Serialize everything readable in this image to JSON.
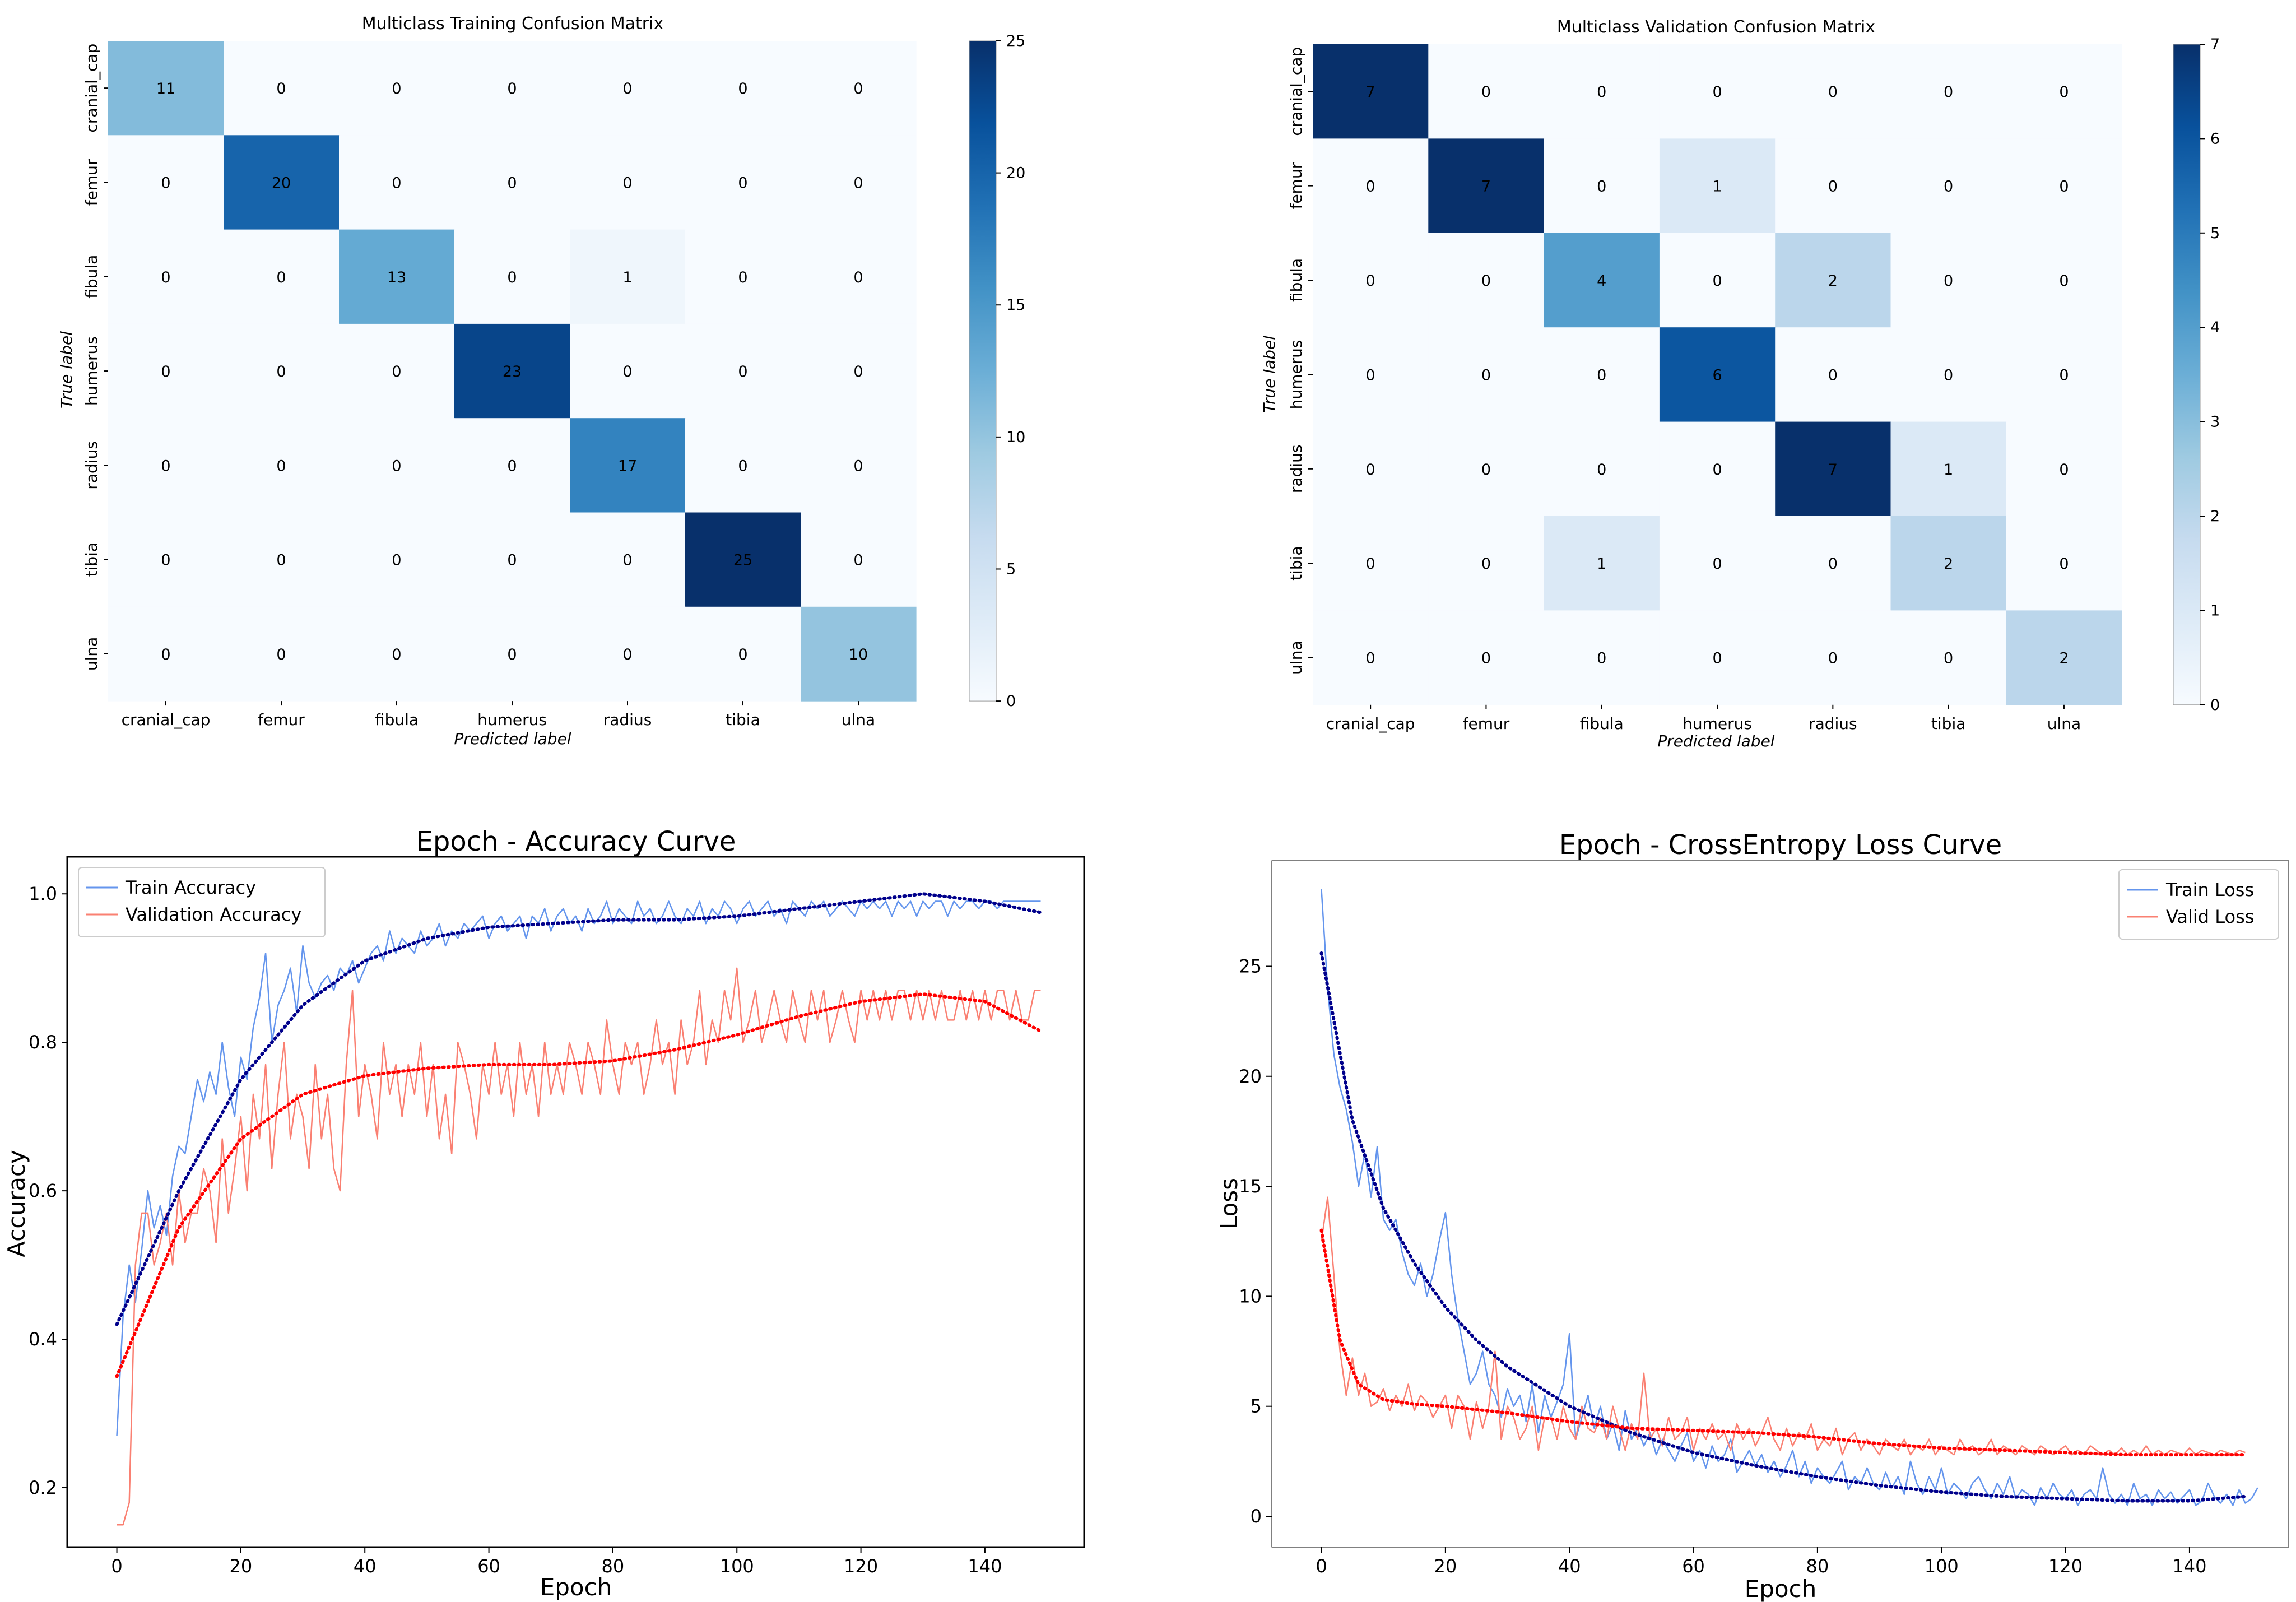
{
  "chart_data": [
    {
      "type": "heatmap",
      "title": "Multiclass Training Confusion Matrix",
      "xlabel": "Predicted label",
      "ylabel": "True label",
      "x_categories": [
        "cranial_cap",
        "femur",
        "fibula",
        "humerus",
        "radius",
        "tibia",
        "ulna"
      ],
      "y_categories": [
        "cranial_cap",
        "femur",
        "fibula",
        "humerus",
        "radius",
        "tibia",
        "ulna"
      ],
      "matrix": [
        [
          11,
          0,
          0,
          0,
          0,
          0,
          0
        ],
        [
          0,
          20,
          0,
          0,
          0,
          0,
          0
        ],
        [
          0,
          0,
          13,
          0,
          1,
          0,
          0
        ],
        [
          0,
          0,
          0,
          23,
          0,
          0,
          0
        ],
        [
          0,
          0,
          0,
          0,
          17,
          0,
          0
        ],
        [
          0,
          0,
          0,
          0,
          0,
          25,
          0
        ],
        [
          0,
          0,
          0,
          0,
          0,
          0,
          10
        ]
      ],
      "colorbar_range": [
        0,
        25
      ],
      "colorbar_ticks": [
        "0",
        "5",
        "10",
        "15",
        "20",
        "25"
      ],
      "colormap": "Blues"
    },
    {
      "type": "heatmap",
      "title": "Multiclass Validation Confusion Matrix",
      "xlabel": "Predicted label",
      "ylabel": "True label",
      "x_categories": [
        "cranial_cap",
        "femur",
        "fibula",
        "humerus",
        "radius",
        "tibia",
        "ulna"
      ],
      "y_categories": [
        "cranial_cap",
        "femur",
        "fibula",
        "humerus",
        "radius",
        "tibia",
        "ulna"
      ],
      "matrix": [
        [
          7,
          0,
          0,
          0,
          0,
          0,
          0
        ],
        [
          0,
          7,
          0,
          1,
          0,
          0,
          0
        ],
        [
          0,
          0,
          4,
          0,
          2,
          0,
          0
        ],
        [
          0,
          0,
          0,
          6,
          0,
          0,
          0
        ],
        [
          0,
          0,
          0,
          0,
          7,
          1,
          0
        ],
        [
          0,
          0,
          1,
          0,
          0,
          2,
          0
        ],
        [
          0,
          0,
          0,
          0,
          0,
          0,
          2
        ]
      ],
      "colorbar_range": [
        0,
        7
      ],
      "colorbar_ticks": [
        "0",
        "1",
        "2",
        "3",
        "4",
        "5",
        "6",
        "7"
      ],
      "colormap": "Blues"
    },
    {
      "type": "line",
      "title": "Epoch - Accuracy Curve",
      "xlabel": "Epoch",
      "ylabel": "Accuracy",
      "xlim": [
        -8,
        156
      ],
      "ylim": [
        0.12,
        1.05
      ],
      "xticks": [
        "0",
        "20",
        "40",
        "60",
        "80",
        "100",
        "120",
        "140"
      ],
      "yticks": [
        "0.2",
        "0.4",
        "0.6",
        "0.8",
        "1.0"
      ],
      "legend_position": "upper-left",
      "series": [
        {
          "name": "Train Accuracy",
          "color": "#6495ED",
          "values": [
            0.27,
            0.43,
            0.5,
            0.45,
            0.52,
            0.6,
            0.55,
            0.58,
            0.54,
            0.62,
            0.66,
            0.65,
            0.7,
            0.75,
            0.72,
            0.76,
            0.73,
            0.8,
            0.74,
            0.7,
            0.78,
            0.75,
            0.82,
            0.86,
            0.92,
            0.8,
            0.85,
            0.87,
            0.9,
            0.84,
            0.93,
            0.88,
            0.86,
            0.88,
            0.89,
            0.87,
            0.9,
            0.89,
            0.91,
            0.88,
            0.9,
            0.92,
            0.93,
            0.91,
            0.95,
            0.92,
            0.94,
            0.93,
            0.92,
            0.95,
            0.93,
            0.94,
            0.96,
            0.93,
            0.95,
            0.94,
            0.96,
            0.95,
            0.96,
            0.97,
            0.94,
            0.96,
            0.97,
            0.95,
            0.96,
            0.97,
            0.94,
            0.97,
            0.96,
            0.98,
            0.95,
            0.97,
            0.98,
            0.96,
            0.97,
            0.95,
            0.98,
            0.96,
            0.97,
            0.99,
            0.96,
            0.98,
            0.97,
            0.96,
            0.99,
            0.97,
            0.98,
            0.96,
            0.97,
            0.99,
            0.97,
            0.96,
            0.98,
            0.97,
            0.99,
            0.96,
            0.98,
            0.97,
            0.99,
            0.98,
            0.96,
            0.98,
            0.99,
            0.97,
            0.98,
            0.99,
            0.97,
            0.98,
            0.96,
            0.99,
            0.98,
            0.97,
            0.99,
            0.98,
            0.99,
            0.97,
            0.98,
            0.99,
            0.98,
            0.97,
            0.99,
            0.98,
            0.99,
            0.98,
            0.99,
            0.97,
            0.99,
            0.98,
            0.99,
            0.97,
            0.99,
            0.98,
            0.99,
            0.99,
            0.97,
            0.99,
            0.98,
            0.99,
            0.99,
            0.98,
            0.99,
            0.99,
            0.98,
            0.99,
            0.99,
            0.99,
            0.99,
            0.99,
            0.99,
            0.99
          ]
        },
        {
          "name": "Validation Accuracy",
          "color": "#FA8072",
          "values": [
            0.15,
            0.15,
            0.18,
            0.5,
            0.57,
            0.57,
            0.5,
            0.53,
            0.57,
            0.5,
            0.6,
            0.53,
            0.57,
            0.57,
            0.63,
            0.6,
            0.53,
            0.67,
            0.57,
            0.63,
            0.7,
            0.6,
            0.73,
            0.67,
            0.77,
            0.63,
            0.73,
            0.8,
            0.67,
            0.73,
            0.7,
            0.63,
            0.77,
            0.67,
            0.73,
            0.63,
            0.6,
            0.77,
            0.87,
            0.7,
            0.77,
            0.73,
            0.67,
            0.8,
            0.73,
            0.77,
            0.7,
            0.77,
            0.73,
            0.8,
            0.7,
            0.77,
            0.67,
            0.73,
            0.65,
            0.8,
            0.77,
            0.73,
            0.67,
            0.77,
            0.73,
            0.8,
            0.73,
            0.77,
            0.7,
            0.8,
            0.73,
            0.77,
            0.7,
            0.8,
            0.73,
            0.77,
            0.73,
            0.8,
            0.77,
            0.73,
            0.8,
            0.77,
            0.73,
            0.83,
            0.77,
            0.73,
            0.8,
            0.77,
            0.8,
            0.73,
            0.77,
            0.83,
            0.77,
            0.8,
            0.73,
            0.83,
            0.77,
            0.8,
            0.87,
            0.77,
            0.83,
            0.8,
            0.87,
            0.83,
            0.9,
            0.8,
            0.83,
            0.87,
            0.8,
            0.83,
            0.87,
            0.83,
            0.8,
            0.87,
            0.83,
            0.8,
            0.87,
            0.83,
            0.87,
            0.8,
            0.83,
            0.87,
            0.83,
            0.8,
            0.87,
            0.83,
            0.87,
            0.83,
            0.87,
            0.83,
            0.87,
            0.87,
            0.83,
            0.87,
            0.83,
            0.87,
            0.83,
            0.87,
            0.83,
            0.83,
            0.87,
            0.83,
            0.87,
            0.83,
            0.87,
            0.83,
            0.87,
            0.87,
            0.83,
            0.87,
            0.83,
            0.83,
            0.87,
            0.87
          ]
        },
        {
          "name": "",
          "color": "#00008B",
          "dotted": true,
          "x": [
            0,
            10,
            20,
            30,
            40,
            50,
            60,
            70,
            80,
            90,
            100,
            110,
            120,
            130,
            140,
            149
          ],
          "values": [
            0.42,
            0.6,
            0.75,
            0.85,
            0.91,
            0.94,
            0.955,
            0.96,
            0.965,
            0.965,
            0.97,
            0.98,
            0.99,
            1.0,
            0.99,
            0.975
          ]
        },
        {
          "name": "",
          "color": "#FF0000",
          "dotted": true,
          "x": [
            0,
            10,
            20,
            30,
            40,
            50,
            60,
            70,
            80,
            90,
            100,
            110,
            120,
            130,
            140,
            149
          ],
          "values": [
            0.35,
            0.55,
            0.67,
            0.73,
            0.755,
            0.765,
            0.77,
            0.77,
            0.775,
            0.79,
            0.81,
            0.835,
            0.855,
            0.865,
            0.855,
            0.815
          ]
        }
      ]
    },
    {
      "type": "line",
      "title": "Epoch - CrossEntropy Loss Curve",
      "xlabel": "Epoch",
      "ylabel": "Loss",
      "xlim": [
        -8,
        156
      ],
      "ylim": [
        -1.4,
        29.8
      ],
      "xticks": [
        "0",
        "20",
        "40",
        "60",
        "80",
        "100",
        "120",
        "140"
      ],
      "yticks": [
        "0",
        "5",
        "10",
        "15",
        "20",
        "25"
      ],
      "legend_position": "upper-right",
      "series": [
        {
          "name": "Train Loss",
          "color": "#6495ED",
          "values": [
            28.5,
            24,
            21,
            19.5,
            18.5,
            17,
            15,
            16.5,
            14.5,
            16.8,
            13.5,
            13,
            13.5,
            12,
            11,
            10.5,
            11.5,
            10,
            11,
            12.5,
            13.8,
            11,
            9,
            7.5,
            6,
            6.5,
            7.5,
            6,
            5.5,
            4.5,
            5.8,
            5,
            5.5,
            4.3,
            6,
            3.8,
            5.5,
            4.5,
            5.2,
            6,
            8.3,
            3.5,
            4.5,
            5.5,
            4,
            5,
            3.5,
            4.2,
            3,
            4.8,
            3.5,
            4,
            3.2,
            3.8,
            2.8,
            3.5,
            3,
            2.5,
            3.2,
            3.8,
            2.5,
            3,
            2.2,
            3.2,
            2.5,
            2.8,
            3.5,
            2,
            2.5,
            3,
            2.3,
            2.8,
            2,
            2.5,
            1.8,
            2.3,
            3,
            1.8,
            2.5,
            1.5,
            2.2,
            1.8,
            1.5,
            2,
            2.5,
            1.2,
            1.8,
            1.5,
            2.2,
            1.5,
            1.2,
            2,
            1.3,
            1.8,
            1,
            2.5,
            1.5,
            1,
            1.8,
            1.2,
            2.2,
            1,
            1.5,
            1.2,
            0.8,
            1.5,
            1.8,
            1.2,
            0.8,
            1.5,
            1,
            1.8,
            0.8,
            1.2,
            1,
            0.5,
            1.3,
            0.8,
            1.5,
            1,
            0.8,
            1.2,
            0.5,
            1,
            1.2,
            0.8,
            2.2,
            1,
            0.6,
            1,
            0.5,
            1.5,
            0.8,
            1,
            0.5,
            1.2,
            0.8,
            1.1,
            0.6,
            0.9,
            1.2,
            0.5,
            0.7,
            1.5,
            0.9,
            0.6,
            1,
            0.5,
            1.2,
            0.6,
            0.8,
            1.3
          ]
        },
        {
          "name": "Valid Loss",
          "color": "#FA8072",
          "values": [
            12.5,
            14.5,
            11,
            7.5,
            5.5,
            7.2,
            5.5,
            6.5,
            5,
            5.2,
            5.8,
            4.8,
            5.5,
            5,
            6,
            4.8,
            5.5,
            5.2,
            4.5,
            5,
            5.5,
            4,
            5.5,
            5,
            3.5,
            5.2,
            4,
            5,
            7.5,
            3.5,
            5,
            4.5,
            3.5,
            4,
            5,
            3,
            4.5,
            4.5,
            3.5,
            5,
            4,
            3.5,
            5,
            4,
            3.8,
            4.5,
            3.5,
            5,
            4,
            3,
            4.2,
            3.5,
            6.5,
            3.5,
            4,
            3.2,
            4.5,
            3.5,
            3.8,
            4.5,
            3,
            4,
            3.5,
            4.2,
            3.5,
            3.8,
            3,
            4.2,
            3.5,
            4,
            3.2,
            3.8,
            4.5,
            3.5,
            3,
            4,
            3.2,
            3.8,
            3.5,
            4.2,
            3,
            3.5,
            3.2,
            4,
            2.8,
            3.5,
            3.8,
            3,
            3.5,
            3.2,
            2.8,
            3.5,
            3.2,
            3,
            3.5,
            2.8,
            3.2,
            3,
            3.5,
            2.8,
            3.2,
            3,
            2.8,
            3.5,
            3,
            3.2,
            2.8,
            3,
            3.5,
            2.8,
            3.2,
            3,
            2.8,
            3.2,
            3,
            2.8,
            3.2,
            3,
            2.8,
            3,
            3.2,
            2.8,
            3,
            2.8,
            3.2,
            3,
            2.8,
            3,
            2.8,
            3.1,
            2.8,
            3,
            2.8,
            3.2,
            2.8,
            3,
            2.8,
            3,
            2.9,
            2.8,
            3.1,
            2.8,
            3,
            2.9,
            2.8,
            3,
            2.9,
            2.8,
            3,
            2.9
          ]
        },
        {
          "name": "",
          "color": "#00008B",
          "dotted": true,
          "x": [
            0,
            5,
            10,
            15,
            20,
            25,
            30,
            40,
            50,
            60,
            70,
            80,
            90,
            100,
            110,
            120,
            130,
            140,
            149
          ],
          "values": [
            25.6,
            18,
            14,
            11.5,
            9.5,
            8,
            6.8,
            5,
            3.8,
            2.9,
            2.3,
            1.8,
            1.4,
            1.1,
            0.9,
            0.8,
            0.7,
            0.7,
            0.9
          ]
        },
        {
          "name": "",
          "color": "#FF0000",
          "dotted": true,
          "x": [
            0,
            3,
            6,
            10,
            15,
            20,
            30,
            40,
            50,
            60,
            70,
            80,
            90,
            100,
            110,
            120,
            130,
            140,
            149
          ],
          "values": [
            13,
            8,
            6,
            5.3,
            5.1,
            5,
            4.7,
            4.3,
            4,
            3.9,
            3.8,
            3.6,
            3.3,
            3.1,
            3,
            2.9,
            2.8,
            2.8,
            2.8
          ]
        }
      ]
    }
  ]
}
